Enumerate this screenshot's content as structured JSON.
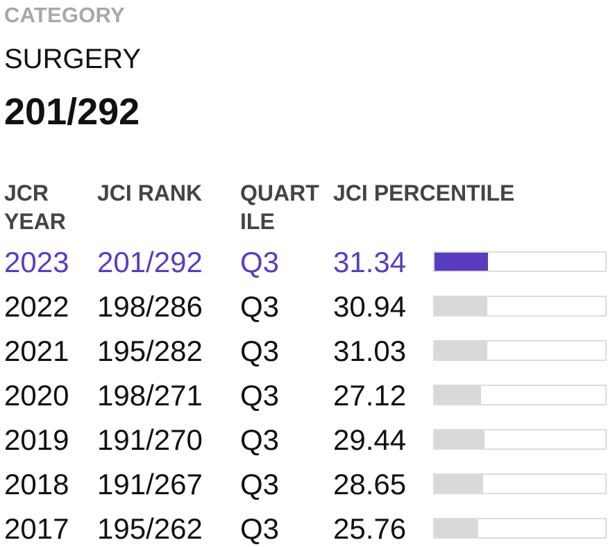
{
  "category": {
    "label": "CATEGORY",
    "name": "SURGERY",
    "rank": "201/292"
  },
  "table": {
    "headers": {
      "year": [
        "JCR",
        "YEAR"
      ],
      "rank": [
        "JCI RANK"
      ],
      "quartile": [
        "QUART",
        "ILE"
      ],
      "percentile": [
        "JCI PERCENTILE"
      ]
    },
    "rows": [
      {
        "year": "2023",
        "rank": "201/292",
        "quartile": "Q3",
        "percentile": "31.34",
        "percentile_value": 31.34,
        "current": true
      },
      {
        "year": "2022",
        "rank": "198/286",
        "quartile": "Q3",
        "percentile": "30.94",
        "percentile_value": 30.94,
        "current": false
      },
      {
        "year": "2021",
        "rank": "195/282",
        "quartile": "Q3",
        "percentile": "31.03",
        "percentile_value": 31.03,
        "current": false
      },
      {
        "year": "2020",
        "rank": "198/271",
        "quartile": "Q3",
        "percentile": "27.12",
        "percentile_value": 27.12,
        "current": false
      },
      {
        "year": "2019",
        "rank": "191/270",
        "quartile": "Q3",
        "percentile": "29.44",
        "percentile_value": 29.44,
        "current": false
      },
      {
        "year": "2018",
        "rank": "191/267",
        "quartile": "Q3",
        "percentile": "28.65",
        "percentile_value": 28.65,
        "current": false
      },
      {
        "year": "2017",
        "rank": "195/262",
        "quartile": "Q3",
        "percentile": "25.76",
        "percentile_value": 25.76,
        "current": false
      }
    ]
  },
  "colors": {
    "accent": "#5a3dbf",
    "bar_inactive": "#d9d9d9",
    "bar_border": "#dcdcdc",
    "label_gray": "#a8a8a8"
  }
}
